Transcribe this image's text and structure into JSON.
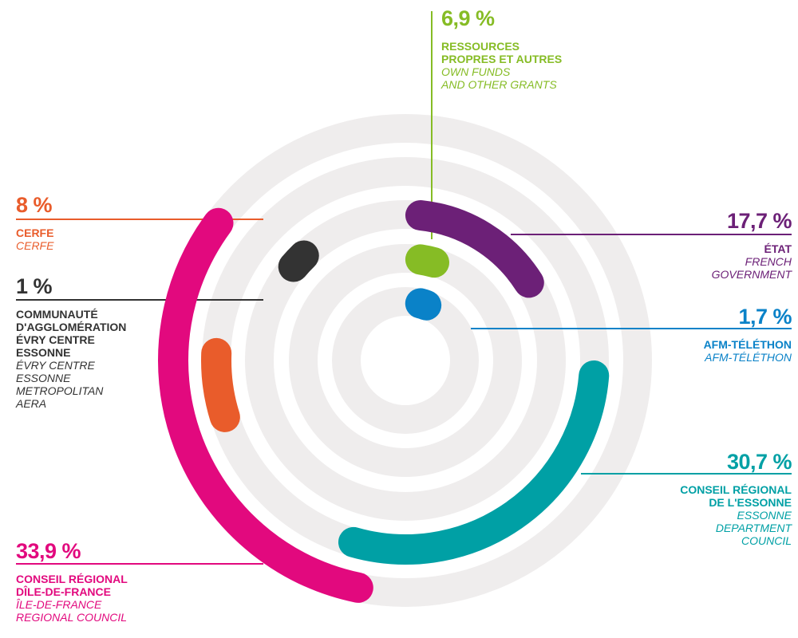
{
  "colors": {
    "track": "#efeded",
    "ressources": "#86bc25",
    "etat": "#6c2077",
    "afm": "#0a82c8",
    "conseil_essonne": "#00a0a5",
    "conseil_idf": "#e2097e",
    "cerfe": "#e95c2b",
    "communaute": "#333333"
  },
  "labels": {
    "ressources": {
      "pct": "6,9 %",
      "fr": [
        "RESSOURCES",
        "PROPRES ET AUTRES"
      ],
      "en": [
        "OWN FUNDS",
        "AND OTHER GRANTS"
      ]
    },
    "etat": {
      "pct": "17,7 %",
      "fr": [
        "ÉTAT"
      ],
      "en": [
        "FRENCH",
        "GOVERNMENT"
      ]
    },
    "afm": {
      "pct": "1,7 %",
      "fr": [
        "AFM-TÉLÉTHON"
      ],
      "en": [
        "AFM-TÉLÉTHON"
      ]
    },
    "conseil_essonne": {
      "pct": "30,7 %",
      "fr": [
        "CONSEIL RÉGIONAL",
        "DE L'ESSONNE"
      ],
      "en": [
        "ESSONNE",
        "DEPARTMENT",
        "COUNCIL"
      ]
    },
    "conseil_idf": {
      "pct": "33,9 %",
      "fr": [
        "CONSEIL RÉGIONAL",
        "DÎLE-DE-FRANCE"
      ],
      "en": [
        "ÎLE-DE-FRANCE",
        "REGIONAL COUNCIL"
      ]
    },
    "cerfe": {
      "pct": "8 %",
      "fr": [
        "CERFE"
      ],
      "en": [
        "CERFE"
      ]
    },
    "communaute": {
      "pct": "1 %",
      "fr": [
        "COMMUNAUTÉ",
        "D'AGGLOMÉRATION",
        "ÉVRY CENTRE",
        "ESSONNE"
      ],
      "en": [
        "ÉVRY CENTRE",
        "ESSONNE",
        "METROPOLITAN",
        "AERA"
      ]
    }
  },
  "chart_data": {
    "type": "radial-bar",
    "title": "",
    "unit": "%",
    "series": [
      {
        "key": "ressources",
        "name": "Ressources propres et autres",
        "value": 6.9,
        "ring": 1,
        "start_angle": 0
      },
      {
        "key": "etat",
        "name": "État",
        "value": 17.7,
        "ring": 2,
        "start_angle": 0
      },
      {
        "key": "afm",
        "name": "AFM-Téléthon",
        "value": 1.7,
        "ring": 0,
        "start_angle": 0
      },
      {
        "key": "conseil_essonne",
        "name": "Conseil régional de l'Essonne",
        "value": 30.7,
        "ring": 3,
        "start_angle": 90
      },
      {
        "key": "conseil_idf",
        "name": "Conseil régional d'Île-de-France",
        "value": 33.9,
        "ring": 4,
        "start_angle": 188
      },
      {
        "key": "cerfe",
        "name": "CERFE",
        "value": 8,
        "ring": 3,
        "start_angle": 248
      },
      {
        "key": "communaute",
        "name": "Communauté d'agglomération Évry Centre Essonne",
        "value": 1,
        "ring": 2,
        "start_angle": 304
      }
    ]
  }
}
